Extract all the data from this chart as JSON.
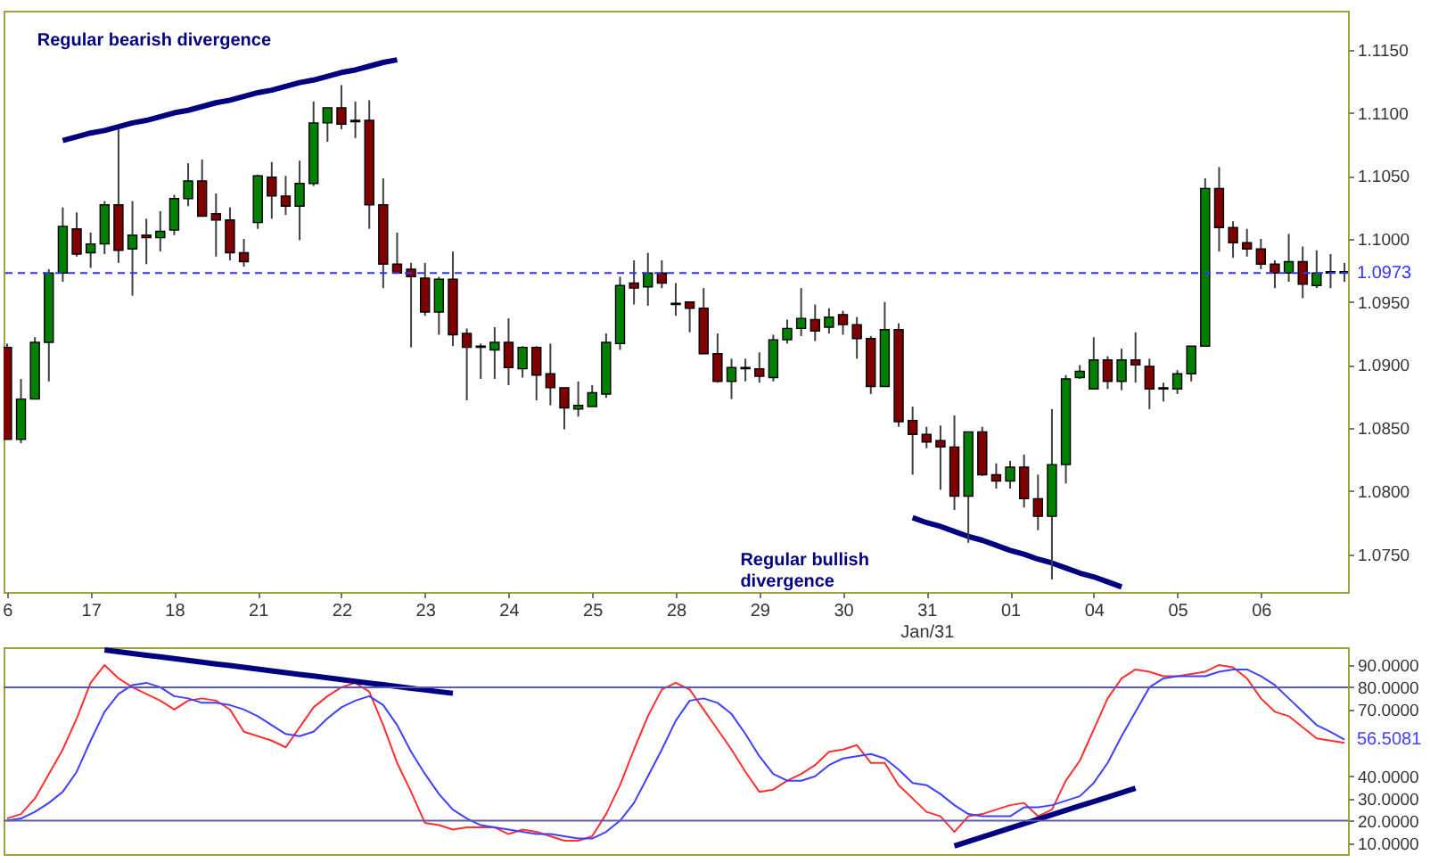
{
  "chart_data": [
    {
      "type": "candlestick",
      "categories": [
        "6",
        null,
        null,
        null,
        null,
        null,
        "17",
        null,
        null,
        null,
        null,
        null,
        "18",
        null,
        null,
        null,
        null,
        null,
        "21",
        null,
        null,
        null,
        null,
        null,
        "22",
        null,
        null,
        null,
        null,
        null,
        "23",
        null,
        null,
        null,
        null,
        null,
        "24",
        null,
        null,
        null,
        null,
        null,
        "25",
        null,
        null,
        null,
        null,
        null,
        "28",
        null,
        null,
        null,
        null,
        null,
        "29",
        null,
        null,
        null,
        null,
        null,
        "30",
        null,
        null,
        null,
        null,
        null,
        "31\nJan/31",
        null,
        null,
        null,
        null,
        null,
        "01",
        null,
        null,
        null,
        null,
        null,
        "04",
        null,
        null,
        null,
        null,
        null,
        "05",
        null,
        null,
        null,
        null,
        null,
        "06",
        null,
        null,
        null,
        null,
        null,
        null
      ],
      "ohlc": [
        [
          1.0914,
          1.0917,
          1.0841,
          1.0841
        ],
        [
          1.0841,
          1.0889,
          1.0838,
          1.0873
        ],
        [
          1.0873,
          1.0922,
          1.0873,
          1.0918
        ],
        [
          1.0918,
          1.0976,
          1.0887,
          1.0973
        ],
        [
          1.0973,
          1.1025,
          1.0966,
          1.101
        ],
        [
          1.1008,
          1.1021,
          1.0986,
          1.0988
        ],
        [
          1.0989,
          1.1005,
          1.0977,
          1.0996
        ],
        [
          1.0996,
          1.103,
          1.0988,
          1.1027
        ],
        [
          1.1027,
          1.1087,
          1.0981,
          1.0991
        ],
        [
          1.0992,
          1.103,
          1.0955,
          1.1003
        ],
        [
          1.1003,
          1.1016,
          1.098,
          1.1001
        ],
        [
          1.1001,
          1.1022,
          1.099,
          1.1006
        ],
        [
          1.1007,
          1.1035,
          1.1003,
          1.1032
        ],
        [
          1.1032,
          1.106,
          1.1026,
          1.1046
        ],
        [
          1.1046,
          1.1063,
          1.1018,
          1.1018
        ],
        [
          1.102,
          1.1036,
          1.0986,
          1.1015
        ],
        [
          1.1015,
          1.1025,
          1.0983,
          1.0989
        ],
        [
          1.0989,
          1.1,
          1.0978,
          1.0982
        ],
        [
          1.1013,
          1.1051,
          1.1008,
          1.105
        ],
        [
          1.1049,
          1.1061,
          1.1016,
          1.1034
        ],
        [
          1.1034,
          1.105,
          1.1019,
          1.1026
        ],
        [
          1.1026,
          1.1062,
          1.0999,
          1.1044
        ],
        [
          1.1044,
          1.1109,
          1.1042,
          1.1092
        ],
        [
          1.1092,
          1.1104,
          1.1077,
          1.1104
        ],
        [
          1.1104,
          1.1122,
          1.1087,
          1.1091
        ],
        [
          1.1094,
          1.1109,
          1.108,
          1.1093
        ],
        [
          1.1094,
          1.111,
          1.1008,
          1.1027
        ],
        [
          1.1027,
          1.1048,
          1.0961,
          1.098
        ],
        [
          1.098,
          1.1005,
          1.0973,
          1.0973
        ],
        [
          1.0976,
          1.0981,
          1.0914,
          1.097
        ],
        [
          1.0969,
          1.0981,
          1.0939,
          1.0942
        ],
        [
          1.0942,
          1.097,
          1.0924,
          1.0968
        ],
        [
          1.0968,
          1.099,
          1.0915,
          1.0924
        ],
        [
          1.0925,
          1.0929,
          1.0872,
          1.0914
        ],
        [
          1.0915,
          1.0917,
          1.0889,
          1.0914
        ],
        [
          1.0912,
          1.093,
          1.0889,
          1.0918
        ],
        [
          1.0918,
          1.0937,
          1.0884,
          1.0898
        ],
        [
          1.0897,
          1.0915,
          1.089,
          1.0914
        ],
        [
          1.0914,
          1.0915,
          1.0872,
          1.0892
        ],
        [
          1.0893,
          1.0917,
          1.0868,
          1.0882
        ],
        [
          1.0882,
          1.0882,
          1.0849,
          1.0866
        ],
        [
          1.0865,
          1.0887,
          1.0859,
          1.0868
        ],
        [
          1.0867,
          1.0884,
          1.0867,
          1.0878
        ],
        [
          1.0877,
          1.0925,
          1.0874,
          1.0918
        ],
        [
          1.0917,
          1.097,
          1.0912,
          1.0963
        ],
        [
          1.0965,
          1.0983,
          1.0948,
          1.0961
        ],
        [
          1.0962,
          1.0989,
          1.0947,
          1.0973
        ],
        [
          1.0973,
          1.0983,
          1.0961,
          1.0965
        ],
        [
          1.0949,
          1.0965,
          1.0939,
          1.0948
        ],
        [
          1.095,
          1.095,
          1.0926,
          1.0945
        ],
        [
          1.0945,
          1.0961,
          1.0909,
          1.0909
        ],
        [
          1.0909,
          1.0925,
          1.0886,
          1.0887
        ],
        [
          1.0887,
          1.0905,
          1.0873,
          1.0898
        ],
        [
          1.0898,
          1.0905,
          1.0887,
          1.0897
        ],
        [
          1.0897,
          1.091,
          1.0886,
          1.0891
        ],
        [
          1.089,
          1.0924,
          1.0887,
          1.092
        ],
        [
          1.092,
          1.0936,
          1.0917,
          1.0929
        ],
        [
          1.0929,
          1.0961,
          1.0923,
          1.0937
        ],
        [
          1.0936,
          1.0948,
          1.0919,
          1.0927
        ],
        [
          1.093,
          1.0945,
          1.0925,
          1.0938
        ],
        [
          1.094,
          1.0943,
          1.0924,
          1.0932
        ],
        [
          1.0932,
          1.0938,
          1.0905,
          1.0921
        ],
        [
          1.0921,
          1.0923,
          1.0877,
          1.0883
        ],
        [
          1.0883,
          1.095,
          1.0883,
          1.0928
        ],
        [
          1.0928,
          1.0933,
          1.0851,
          1.0855
        ],
        [
          1.0856,
          1.0867,
          1.0813,
          1.0845
        ],
        [
          1.0845,
          1.0851,
          1.0834,
          1.0839
        ],
        [
          1.084,
          1.0852,
          1.0801,
          1.0835
        ],
        [
          1.0835,
          1.086,
          1.0785,
          1.0796
        ],
        [
          1.0796,
          1.0847,
          1.0759,
          1.0847
        ],
        [
          1.0847,
          1.0851,
          1.0812,
          1.0813
        ],
        [
          1.0813,
          1.0822,
          1.0802,
          1.0808
        ],
        [
          1.0808,
          1.0824,
          1.0802,
          1.0819
        ],
        [
          1.0819,
          1.0829,
          1.0787,
          1.0794
        ],
        [
          1.0794,
          1.0813,
          1.0769,
          1.078
        ],
        [
          1.078,
          1.0865,
          1.073,
          1.0821
        ],
        [
          1.0821,
          1.0892,
          1.0806,
          1.0889
        ],
        [
          1.089,
          1.09,
          1.0889,
          1.0895
        ],
        [
          1.0881,
          1.0922,
          1.0881,
          1.0904
        ],
        [
          1.0904,
          1.0907,
          1.0881,
          1.0887
        ],
        [
          1.0887,
          1.0913,
          1.088,
          1.0904
        ],
        [
          1.0904,
          1.0926,
          1.0886,
          1.09
        ],
        [
          1.0899,
          1.0905,
          1.0865,
          1.0881
        ],
        [
          1.0882,
          1.0886,
          1.0871,
          1.0881
        ],
        [
          1.0881,
          1.0896,
          1.0877,
          1.0893
        ],
        [
          1.0893,
          1.0915,
          1.0887,
          1.0915
        ],
        [
          1.0915,
          1.1048,
          1.0915,
          1.104
        ],
        [
          1.104,
          1.1057,
          1.099,
          1.1009
        ],
        [
          1.1009,
          1.1014,
          1.0985,
          1.0997
        ],
        [
          1.0997,
          1.1008,
          1.0986,
          1.0992
        ],
        [
          1.0992,
          1.1,
          1.0976,
          1.098
        ],
        [
          1.098,
          1.0983,
          1.0961,
          1.0973
        ],
        [
          1.0973,
          1.1004,
          1.0966,
          1.0982
        ],
        [
          1.0982,
          1.0994,
          1.0953,
          1.0964
        ],
        [
          1.0963,
          1.0991,
          1.0961,
          1.0973
        ],
        [
          1.0974,
          1.0988,
          1.0961,
          1.0973
        ],
        [
          1.0974,
          1.0981,
          1.0966,
          1.0973
        ]
      ],
      "colors": [
        "#800000",
        "#008000",
        "#008000",
        "#008000",
        "#008000",
        "#800000",
        "#008000",
        "#008000",
        "#800000",
        "#008000",
        "#800000",
        "#008000",
        "#008000",
        "#008000",
        "#800000",
        "#800000",
        "#800000",
        "#800000",
        "#008000",
        "#800000",
        "#800000",
        "#008000",
        "#008000",
        "#008000",
        "#800000",
        "#800000",
        "#800000",
        "#800000",
        "#800000",
        "#800000",
        "#800000",
        "#008000",
        "#800000",
        "#800000",
        "#800000",
        "#008000",
        "#800000",
        "#008000",
        "#800000",
        "#800000",
        "#800000",
        "#008000",
        "#008000",
        "#008000",
        "#008000",
        "#800000",
        "#008000",
        "#800000",
        "#800000",
        "#800000",
        "#800000",
        "#800000",
        "#008000",
        "#800000",
        "#800000",
        "#008000",
        "#008000",
        "#008000",
        "#800000",
        "#008000",
        "#800000",
        "#800000",
        "#800000",
        "#008000",
        "#800000",
        "#800000",
        "#800000",
        "#800000",
        "#800000",
        "#008000",
        "#800000",
        "#800000",
        "#008000",
        "#800000",
        "#800000",
        "#008000",
        "#008000",
        "#008000",
        "#008000",
        "#800000",
        "#008000",
        "#800000",
        "#800000",
        "#800000",
        "#008000",
        "#008000",
        "#008000",
        "#800000",
        "#800000",
        "#800000",
        "#800000",
        "#800000",
        "#008000",
        "#800000",
        "#008000",
        "#800000",
        "#800000"
      ],
      "series": [
        {
          "type": "line",
          "color": "#000080",
          "values": [
            null,
            null,
            null,
            null,
            1.1078,
            1.1081,
            1.1084,
            1.1086,
            1.1089,
            1.1092,
            1.1094,
            1.1097,
            1.11,
            1.1102,
            1.1105,
            1.1108,
            1.111,
            1.1113,
            1.1116,
            1.1118,
            1.1121,
            1.1124,
            1.1126,
            1.1129,
            1.1132,
            1.1134,
            1.1137,
            1.114,
            1.1142,
            null,
            null,
            null,
            null,
            null,
            null,
            null,
            null,
            null,
            null,
            null,
            null,
            null,
            null,
            null,
            null,
            null,
            null,
            null,
            null,
            null,
            null,
            null,
            null,
            null,
            null,
            null,
            null,
            null,
            null,
            null,
            null,
            null,
            null,
            null,
            null,
            null,
            null,
            null,
            null,
            null,
            null,
            null,
            null,
            null,
            null,
            null,
            null,
            null,
            null,
            null,
            null,
            null,
            null,
            null,
            null,
            null,
            null,
            null,
            null,
            null,
            null,
            null,
            null,
            null,
            null,
            null,
            null
          ]
        },
        {
          "type": "line",
          "color": "#000080",
          "values": [
            null,
            null,
            null,
            null,
            null,
            null,
            null,
            null,
            null,
            null,
            null,
            null,
            null,
            null,
            null,
            null,
            null,
            null,
            null,
            null,
            null,
            null,
            null,
            null,
            null,
            null,
            null,
            null,
            null,
            null,
            null,
            null,
            null,
            null,
            null,
            null,
            null,
            null,
            null,
            null,
            null,
            null,
            null,
            null,
            null,
            null,
            null,
            null,
            null,
            null,
            null,
            null,
            null,
            null,
            null,
            null,
            null,
            null,
            null,
            null,
            null,
            null,
            null,
            null,
            null,
            1.0779,
            1.0775,
            1.0772,
            1.0768,
            1.0764,
            1.0761,
            1.0757,
            1.0753,
            1.075,
            1.0746,
            1.0743,
            1.0739,
            1.0735,
            1.0732,
            1.0728,
            1.0724,
            null,
            null,
            null,
            null,
            null,
            null,
            null,
            null,
            null,
            null,
            null,
            null,
            null,
            null,
            null,
            null
          ]
        }
      ],
      "ylim": [
        1.072,
        1.1181
      ],
      "yticks": [
        {
          "value": 1.075,
          "label": "1.0750"
        },
        {
          "value": 1.08,
          "label": "1.0800"
        },
        {
          "value": 1.085,
          "label": "1.0850"
        },
        {
          "value": 1.09,
          "label": "1.0900"
        },
        {
          "value": 1.095,
          "label": "1.0950"
        },
        {
          "value": 1.1,
          "label": "1.1000"
        },
        {
          "value": 1.105,
          "label": "1.1050"
        },
        {
          "value": 1.11,
          "label": "1.1100"
        },
        {
          "value": 1.115,
          "label": "1.1150"
        }
      ],
      "ref_lines": [
        {
          "axis": "y",
          "value": 1.0973,
          "label": "1.0973",
          "color": "#3333ff",
          "line_style": "dashed"
        }
      ],
      "annotations": [
        "Regular bearish divergence",
        "Regular bullish\ndivergence"
      ]
    },
    {
      "type": "line",
      "categories": [
        null,
        null,
        null,
        null,
        null,
        null,
        null,
        null,
        null,
        null,
        null,
        null,
        null,
        null,
        null,
        null,
        null,
        null,
        null,
        null,
        null,
        null,
        null,
        null,
        null,
        null,
        null,
        null,
        null,
        null,
        null,
        null,
        null,
        null,
        null,
        null,
        null,
        null,
        null,
        null,
        null,
        null,
        null,
        null,
        null,
        null,
        null,
        null,
        null,
        null,
        null,
        null,
        null,
        null,
        null,
        null,
        null,
        null,
        null,
        null,
        null,
        null,
        null,
        null,
        null,
        null,
        null,
        null,
        null,
        null,
        null,
        null,
        null,
        null,
        null,
        null,
        null,
        null,
        null,
        null,
        null,
        null,
        null,
        null,
        null,
        null,
        null,
        null,
        null,
        null,
        null,
        null,
        null,
        null,
        null,
        null,
        null
      ],
      "series": [
        {
          "color": "#ff3030",
          "values": [
            21,
            23,
            30,
            41,
            52,
            66,
            82,
            90,
            84,
            80,
            77,
            74,
            70,
            74,
            75,
            74,
            70,
            60,
            58,
            56,
            53,
            62,
            71,
            76,
            80,
            82,
            78,
            63,
            46,
            33,
            19,
            18,
            16,
            17,
            17,
            17,
            14,
            16,
            15,
            13,
            11,
            11,
            13,
            23,
            36,
            52,
            67,
            79,
            82,
            79,
            70,
            61,
            52,
            42,
            33,
            34,
            38,
            41,
            45,
            51,
            52,
            54,
            46,
            46,
            36,
            30,
            24,
            22,
            15,
            22,
            23,
            25,
            27,
            28,
            22,
            25,
            38,
            47,
            61,
            75,
            84,
            88,
            87,
            85,
            85,
            86,
            87,
            90,
            89,
            84,
            75,
            69,
            67,
            62,
            57,
            56,
            55
          ]
        },
        {
          "color": "#4040ff",
          "values": [
            20,
            21,
            24,
            28,
            33,
            42,
            56,
            69,
            77,
            81,
            82,
            80,
            76,
            75,
            73,
            73,
            72,
            70,
            67,
            63,
            59,
            58,
            60,
            66,
            71,
            74,
            76,
            72,
            63,
            51,
            41,
            32,
            25,
            21,
            18,
            17,
            16,
            15,
            14,
            14,
            13,
            12,
            12,
            15,
            20,
            28,
            40,
            52,
            65,
            74,
            75,
            73,
            68,
            59,
            49,
            41,
            38,
            38,
            40,
            45,
            48,
            49,
            50,
            48,
            43,
            37,
            36,
            32,
            27,
            23,
            22,
            22,
            22,
            26,
            26,
            27,
            29,
            31,
            37,
            46,
            58,
            69,
            80,
            84,
            85,
            85,
            85,
            87,
            88,
            88,
            85,
            81,
            75,
            69,
            63,
            60,
            56.5
          ]
        },
        {
          "color": "#000080",
          "values": [
            null,
            null,
            null,
            null,
            null,
            null,
            null,
            96.8,
            96.0,
            95.2,
            94.4,
            93.7,
            92.9,
            92.1,
            91.3,
            90.5,
            89.8,
            89.0,
            88.2,
            87.4,
            86.6,
            85.8,
            85.1,
            84.3,
            83.5,
            82.7,
            81.9,
            81.2,
            80.4,
            79.6,
            78.8,
            78.0,
            77.3,
            null,
            null,
            null,
            null,
            null,
            null,
            null,
            null,
            null,
            null,
            null,
            null,
            null,
            null,
            null,
            null,
            null,
            null,
            null,
            null,
            null,
            null,
            null,
            null,
            null,
            null,
            null,
            null,
            null,
            null,
            null,
            null,
            null,
            null,
            null,
            null,
            null,
            null,
            null,
            null,
            null,
            null,
            null,
            null,
            null,
            null,
            null,
            null,
            null,
            null,
            null,
            null,
            null,
            null,
            null,
            null,
            null,
            null,
            null,
            null,
            null,
            null,
            null,
            null
          ]
        },
        {
          "color": "#000080",
          "values": [
            null,
            null,
            null,
            null,
            null,
            null,
            null,
            null,
            null,
            null,
            null,
            null,
            null,
            null,
            null,
            null,
            null,
            null,
            null,
            null,
            null,
            null,
            null,
            null,
            null,
            null,
            null,
            null,
            null,
            null,
            null,
            null,
            null,
            null,
            null,
            null,
            null,
            null,
            null,
            null,
            null,
            null,
            null,
            null,
            null,
            null,
            null,
            null,
            null,
            null,
            null,
            null,
            null,
            null,
            null,
            null,
            null,
            null,
            null,
            null,
            null,
            null,
            null,
            null,
            null,
            null,
            null,
            null,
            8.7,
            10.7,
            12.7,
            14.7,
            16.7,
            18.7,
            20.7,
            22.7,
            24.7,
            26.7,
            28.6,
            30.6,
            32.6,
            34.6,
            null,
            null,
            null,
            null,
            null,
            null,
            null,
            null,
            null,
            null,
            null,
            null,
            null,
            null,
            null
          ]
        }
      ],
      "ylim": [
        5,
        98
      ],
      "yticks": [
        {
          "value": 10,
          "label": "10.0000"
        },
        {
          "value": 20,
          "label": "20.0000"
        },
        {
          "value": 30,
          "label": "30.0000"
        },
        {
          "value": 40,
          "label": "40.0000"
        },
        {
          "value": 70,
          "label": "70.0000"
        },
        {
          "value": 80,
          "label": "80.0000"
        },
        {
          "value": 90,
          "label": "90.0000"
        }
      ],
      "tick_labels": "y",
      "ref_lines": [
        {
          "axis": "y",
          "value": 80,
          "color": "#5a5ab0"
        },
        {
          "axis": "y",
          "value": 20,
          "color": "#5a5ab0"
        }
      ],
      "annotations": [
        "56.5081"
      ]
    }
  ]
}
